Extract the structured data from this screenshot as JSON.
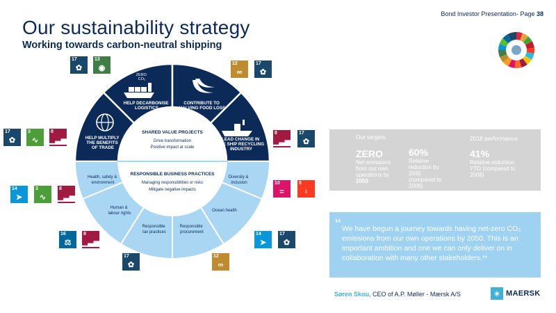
{
  "header": {
    "page_label": "Bond Investor Presentation- Page",
    "page_number": "38",
    "title": "Our sustainability strategy",
    "subtitle": "Working towards carbon-neutral shipping"
  },
  "wheel": {
    "segments": [
      {
        "label_lines": [
          "HELP MULTIPLY",
          "THE BENEFITS",
          "OF TRADE"
        ]
      },
      {
        "label_lines": [
          "HELP DECARBONISE",
          "LOGISTICS"
        ],
        "top_lines": [
          "ZERO",
          "CO₂"
        ]
      },
      {
        "label_lines": [
          "CONTRIBUTE TO",
          "HALVING FOOD LOSS"
        ]
      },
      {
        "label_lines": [
          "LEAD CHANGE IN",
          "THE SHIP RECYCLING",
          "INDUSTRY"
        ]
      }
    ],
    "shared_value": {
      "title": "SHARED VALUE PROJECTS",
      "line1": "Drive transformation",
      "line2": "Positive impact at scale"
    },
    "responsible": {
      "title": "RESPONSIBLE BUSINESS PRACTICES",
      "line1": "Managing responsibilities or risks",
      "line2": "Mitigate negative impacts"
    },
    "lower_segments": [
      {
        "label_lines": [
          "Health, safety &",
          "environment"
        ]
      },
      {
        "label_lines": [
          "Human &",
          "labour rights"
        ]
      },
      {
        "label_lines": [
          "Responsible",
          "tax practices"
        ]
      },
      {
        "label_lines": [
          "Responsible",
          "procurement"
        ]
      },
      {
        "label_lines": [
          "Ocean health"
        ]
      },
      {
        "label_lines": [
          "Diversity &",
          "inclusion"
        ]
      }
    ]
  },
  "sdg_tiles": [
    {
      "num": "17",
      "color": "#19486a",
      "glyph": "✿"
    },
    {
      "num": "13",
      "color": "#3f7e44",
      "glyph": "◉"
    },
    {
      "num": "12",
      "color": "#bf8b2e",
      "glyph": "∞"
    },
    {
      "num": "17",
      "color": "#19486a",
      "glyph": "✿"
    },
    {
      "num": "17",
      "color": "#19486a",
      "glyph": "✿"
    },
    {
      "num": "3",
      "color": "#4c9f38",
      "glyph": "∿"
    },
    {
      "num": "8",
      "color": "#a21942",
      "glyph": "▁▃▅"
    },
    {
      "num": "8",
      "color": "#a21942",
      "glyph": "▁▃▅"
    },
    {
      "num": "17",
      "color": "#19486a",
      "glyph": "✿"
    },
    {
      "num": "14",
      "color": "#0a97d9",
      "glyph": "➤"
    },
    {
      "num": "3",
      "color": "#4c9f38",
      "glyph": "∿"
    },
    {
      "num": "8",
      "color": "#a21942",
      "glyph": "▁▃▅"
    },
    {
      "num": "10",
      "color": "#dd1367",
      "glyph": "="
    },
    {
      "num": "5",
      "color": "#ff3a21",
      "glyph": "♀"
    },
    {
      "num": "16",
      "color": "#00689d",
      "glyph": "⚖"
    },
    {
      "num": "8",
      "color": "#a21942",
      "glyph": "▁▃▅"
    },
    {
      "num": "17",
      "color": "#19486a",
      "glyph": "✿"
    },
    {
      "num": "12",
      "color": "#bf8b2e",
      "glyph": "∞"
    },
    {
      "num": "14",
      "color": "#0a97d9",
      "glyph": "➤"
    },
    {
      "num": "17",
      "color": "#19486a",
      "glyph": "✿"
    }
  ],
  "targets": {
    "left_header": "Our targets",
    "right_header": "2018 performance",
    "items": [
      {
        "big": "ZERO",
        "lines": [
          "Net emissions",
          "from our own",
          "operations by"
        ],
        "bold_line": "2050"
      },
      {
        "big": "60%",
        "lines": [
          "Relative",
          "reduction by",
          "2030",
          "(compared to",
          "2008)"
        ]
      },
      {
        "big": "41%",
        "lines": [
          "Relative reduction",
          "YTD (compared to",
          "2008)"
        ]
      }
    ]
  },
  "quote": {
    "text": "We have begun a journey towards having net-zero CO₂ emissions from our own operations by 2050. This is an important ambition and one we can only deliver on in collaboration with many other stakeholders."
  },
  "author": {
    "name": "Søren Skou,",
    "role": "CEO of A.P. Møller - Mærsk A/S"
  },
  "logo": {
    "text": "MAERSK"
  },
  "colors": {
    "navy": "#0b2a57",
    "light_blue": "#9ed2f0",
    "maersk_blue": "#42b0d5",
    "grey": "#d4d4d4"
  }
}
